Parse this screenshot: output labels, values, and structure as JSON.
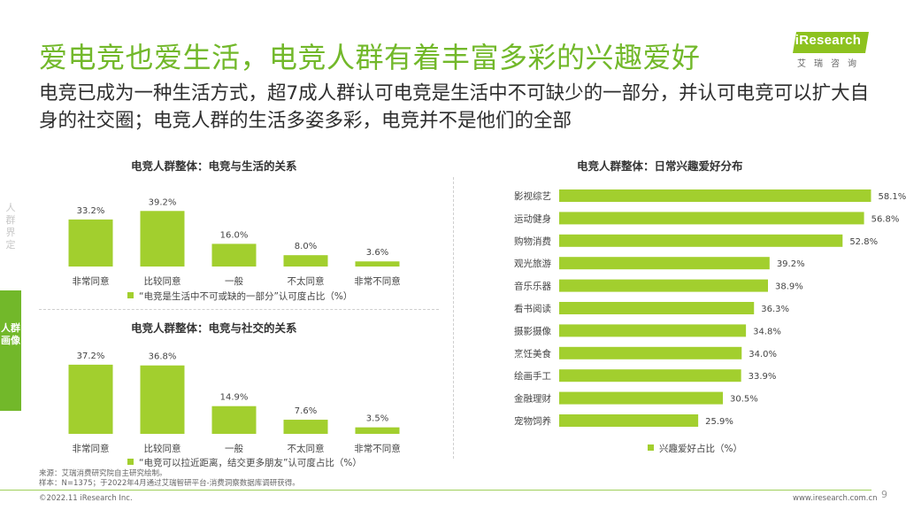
{
  "title": "爱电竞也爱生活，电竞人群有着丰富多彩的兴趣爱好",
  "subtitle": "电竞已成为一种生活方式，超7成人群认可电竞是生活中不可缺少的一部分，并认可电竞可以扩大自身的社交圈；电竞人群的生活多姿多彩，电竞并不是他们的全部",
  "logo": {
    "text": "iResearch",
    "sub": "艾瑞咨询"
  },
  "sidebar": {
    "top_label": "人群界定",
    "active_tab": "人群画像"
  },
  "colors": {
    "accent": "#72b82a",
    "bar": "#a2cf2e"
  },
  "chart_data": [
    {
      "type": "bar",
      "title": "电竞人群整体：电竞与生活的关系",
      "categories": [
        "非常同意",
        "比较同意",
        "一般",
        "不太同意",
        "非常不同意"
      ],
      "values": [
        33.2,
        39.2,
        16.0,
        8.0,
        3.6
      ],
      "value_labels": [
        "33.2%",
        "39.2%",
        "16.0%",
        "8.0%",
        "3.6%"
      ],
      "series": [
        {
          "name": "“电竞是生活中不可或缺的一部分”认可度占比（%）",
          "values": [
            33.2,
            39.2,
            16.0,
            8.0,
            3.6
          ]
        }
      ],
      "ylim": [
        0,
        40
      ],
      "grid": false,
      "legend": "bottom"
    },
    {
      "type": "bar",
      "title": "电竞人群整体：电竞与社交的关系",
      "categories": [
        "非常同意",
        "比较同意",
        "一般",
        "不太同意",
        "非常不同意"
      ],
      "values": [
        37.2,
        36.8,
        14.9,
        7.6,
        3.5
      ],
      "value_labels": [
        "37.2%",
        "36.8%",
        "14.9%",
        "7.6%",
        "3.5%"
      ],
      "series": [
        {
          "name": "“电竞可以拉近距离，结交更多朋友”认可度占比（%）",
          "values": [
            37.2,
            36.8,
            14.9,
            7.6,
            3.5
          ]
        }
      ],
      "ylim": [
        0,
        40
      ],
      "grid": false,
      "legend": "bottom"
    },
    {
      "type": "bar",
      "orientation": "horizontal",
      "title": "电竞人群整体：日常兴趣爱好分布",
      "categories": [
        "影视综艺",
        "运动健身",
        "购物消费",
        "观光旅游",
        "音乐乐器",
        "看书阅读",
        "摄影摄像",
        "烹饪美食",
        "绘画手工",
        "金融理财",
        "宠物饲养"
      ],
      "values": [
        58.1,
        56.8,
        52.8,
        39.2,
        38.9,
        36.3,
        34.8,
        34.0,
        33.9,
        30.5,
        25.9
      ],
      "value_labels": [
        "58.1%",
        "56.8%",
        "52.8%",
        "39.2%",
        "38.9%",
        "36.3%",
        "34.8%",
        "34.0%",
        "33.9%",
        "30.5%",
        "25.9%"
      ],
      "series": [
        {
          "name": "兴趣爱好占比（%）",
          "values": [
            58.1,
            56.8,
            52.8,
            39.2,
            38.9,
            36.3,
            34.8,
            34.0,
            33.9,
            30.5,
            25.9
          ]
        }
      ],
      "xlim": [
        0,
        60
      ],
      "grid": false,
      "legend": "bottom"
    }
  ],
  "footer": {
    "source_line1": "来源：艾瑞消费研究院自主研究绘制。",
    "source_line2": "样本：N=1375；于2022年4月通过艾瑞智研平台-消费洞察数据库调研获得。",
    "copyright": "©2022.11 iResearch Inc.",
    "website": "www.iresearch.com.cn",
    "page": "9"
  }
}
